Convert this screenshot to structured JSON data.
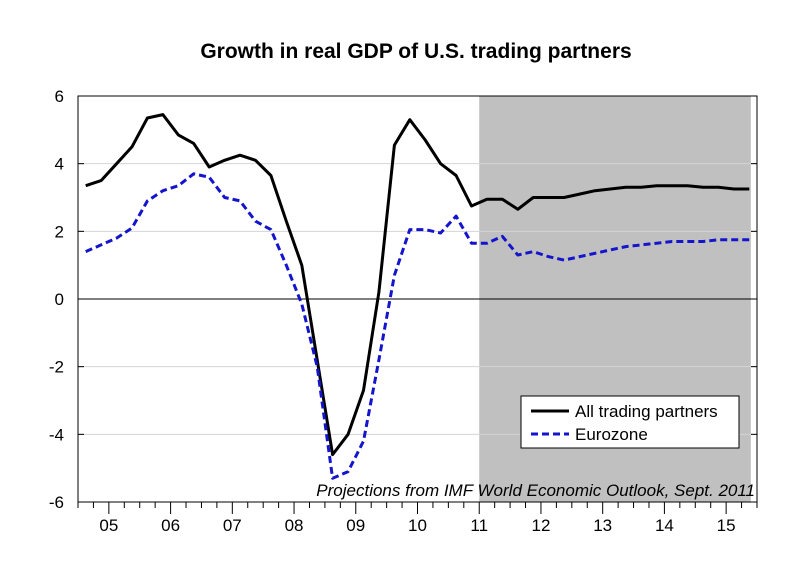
{
  "chart_data": {
    "type": "line",
    "title": "Growth in real GDP of U.S. trading partners",
    "xlabel": "",
    "ylabel": "",
    "ylim": [
      -6,
      6
    ],
    "yticks": [
      "6",
      "4",
      "2",
      "0",
      "-2",
      "-4",
      "-6"
    ],
    "x_tick_labels": [
      "05",
      "06",
      "07",
      "08",
      "09",
      "10",
      "11",
      "12",
      "13",
      "14",
      "15"
    ],
    "x_range": [
      2004.5,
      2015.5
    ],
    "grid": "horizontal",
    "zero_line": true,
    "projection_start": 2011.0,
    "shading_color": "#c0c0c0",
    "note": "Projections from IMF World Economic Outlook, Sept. 2011",
    "legend_position": "lower-right",
    "series": [
      {
        "name": "All trading partners",
        "color": "#000000",
        "style": "solid",
        "x": [
          2004.625,
          2004.875,
          2005.125,
          2005.375,
          2005.625,
          2005.875,
          2006.125,
          2006.375,
          2006.625,
          2006.875,
          2007.125,
          2007.375,
          2007.625,
          2007.875,
          2008.125,
          2008.375,
          2008.625,
          2008.875,
          2009.125,
          2009.375,
          2009.625,
          2009.875,
          2010.125,
          2010.375,
          2010.625,
          2010.875,
          2011.125,
          2011.375,
          2011.625,
          2011.875,
          2012.125,
          2012.375,
          2012.625,
          2012.875,
          2013.125,
          2013.375,
          2013.625,
          2013.875,
          2014.125,
          2014.375,
          2014.625,
          2014.875,
          2015.125,
          2015.375
        ],
        "values": [
          3.35,
          3.5,
          4.0,
          4.5,
          5.35,
          5.45,
          4.85,
          4.6,
          3.9,
          4.1,
          4.25,
          4.1,
          3.65,
          2.3,
          1.0,
          -1.8,
          -4.6,
          -4.0,
          -2.7,
          0.2,
          4.55,
          5.3,
          4.7,
          4.0,
          3.65,
          2.75,
          2.95,
          2.95,
          2.65,
          3.0,
          3.0,
          3.0,
          3.1,
          3.2,
          3.25,
          3.3,
          3.3,
          3.35,
          3.35,
          3.35,
          3.3,
          3.3,
          3.25,
          3.25
        ]
      },
      {
        "name": "Eurozone",
        "color": "#1414cc",
        "style": "dashed",
        "x": [
          2004.625,
          2004.875,
          2005.125,
          2005.375,
          2005.625,
          2005.875,
          2006.125,
          2006.375,
          2006.625,
          2006.875,
          2007.125,
          2007.375,
          2007.625,
          2007.875,
          2008.125,
          2008.375,
          2008.625,
          2008.875,
          2009.125,
          2009.375,
          2009.625,
          2009.875,
          2010.125,
          2010.375,
          2010.625,
          2010.875,
          2011.125,
          2011.375,
          2011.625,
          2011.875,
          2012.125,
          2012.375,
          2012.625,
          2012.875,
          2013.125,
          2013.375,
          2013.625,
          2013.875,
          2014.125,
          2014.375,
          2014.625,
          2014.875,
          2015.125,
          2015.375
        ],
        "values": [
          1.4,
          1.6,
          1.8,
          2.1,
          2.9,
          3.2,
          3.35,
          3.7,
          3.6,
          3.0,
          2.9,
          2.3,
          2.05,
          1.0,
          -0.15,
          -2.0,
          -5.3,
          -5.1,
          -4.2,
          -1.8,
          0.7,
          2.05,
          2.05,
          1.95,
          2.45,
          1.65,
          1.65,
          1.85,
          1.3,
          1.4,
          1.25,
          1.15,
          1.25,
          1.35,
          1.45,
          1.55,
          1.6,
          1.65,
          1.7,
          1.7,
          1.7,
          1.75,
          1.75,
          1.75
        ]
      }
    ]
  }
}
